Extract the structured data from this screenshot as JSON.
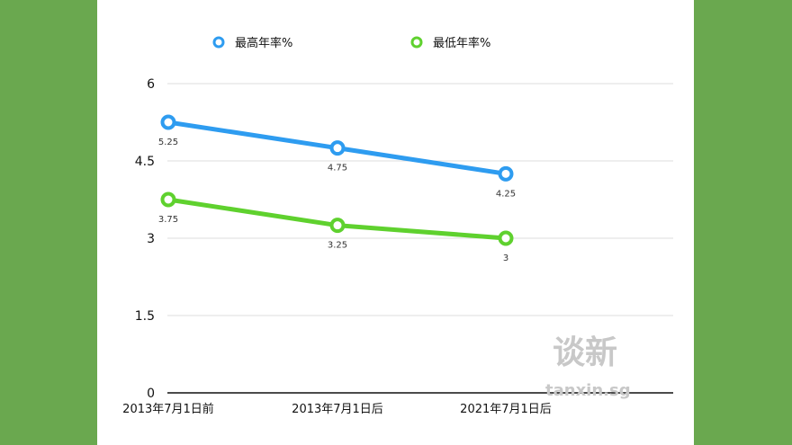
{
  "chart_data": {
    "type": "line",
    "categories": [
      "2013年7月1日前",
      "2013年7月1日后",
      "2021年7月1日后"
    ],
    "series": [
      {
        "name": "最高年率%",
        "values": [
          5.25,
          4.75,
          4.25
        ],
        "color": "#2e9cf0"
      },
      {
        "name": "最低年率%",
        "values": [
          3.75,
          3.25,
          3
        ],
        "color": "#5fd12e"
      }
    ],
    "yticks": [
      "0",
      "1.5",
      "3",
      "4.5",
      "6"
    ],
    "ylim": [
      0,
      6
    ],
    "grid": true,
    "legend": "top"
  },
  "watermark": {
    "cn": "谈新",
    "en": "tanxin.sg"
  }
}
